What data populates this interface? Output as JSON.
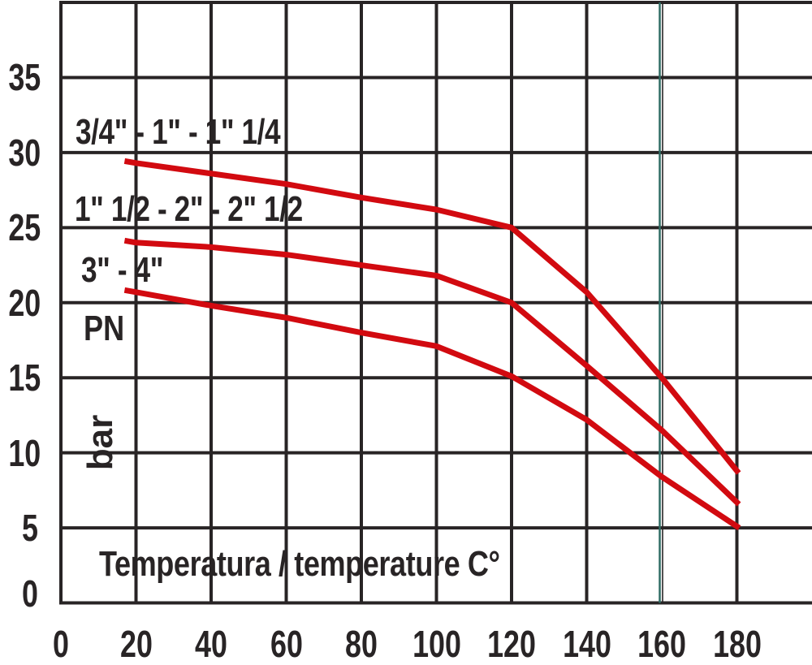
{
  "chart_data": {
    "type": "line",
    "title": "",
    "xlabel": "Temperatura / temperature C°",
    "y_axis_labels": [
      "PN",
      "bar"
    ],
    "x_unit": "C°",
    "y_unit": "bar",
    "xlim": [
      0,
      200
    ],
    "ylim": [
      0,
      40
    ],
    "x_ticks": [
      0,
      20,
      40,
      60,
      80,
      100,
      120,
      140,
      160,
      180
    ],
    "y_ticks": [
      0,
      5,
      10,
      15,
      20,
      25,
      30,
      35
    ],
    "grid": true,
    "legend_position": "inline-labels",
    "colors": {
      "curve": "#d20a10",
      "grid": "#282425",
      "text": "#282425",
      "special_gridline": "#2e6b63",
      "background": "#ffffff"
    },
    "special_x_gridline": {
      "x": 160,
      "color": "#2e6b63"
    },
    "series": [
      {
        "name": "3/4\" - 1\" - 1\" 1/4",
        "x": [
          17.7,
          20,
          40,
          60,
          80,
          100,
          120,
          140,
          160,
          180
        ],
        "values": [
          29.4,
          29.3,
          28.6,
          27.9,
          27.0,
          26.2,
          25.0,
          20.7,
          15.0,
          8.8
        ]
      },
      {
        "name": "1\" 1/2 - 2\" - 2\" 1/2",
        "x": [
          17.7,
          20,
          40,
          60,
          80,
          100,
          120,
          140,
          160,
          180
        ],
        "values": [
          24.1,
          24.0,
          23.7,
          23.2,
          22.5,
          21.8,
          20.0,
          15.8,
          11.5,
          6.7
        ]
      },
      {
        "name": "3\" - 4\"",
        "x": [
          17.7,
          20,
          40,
          60,
          80,
          100,
          120,
          140,
          160,
          180
        ],
        "values": [
          20.8,
          20.7,
          19.8,
          19.0,
          18.0,
          17.1,
          15.1,
          12.2,
          8.4,
          5.1
        ]
      }
    ]
  }
}
